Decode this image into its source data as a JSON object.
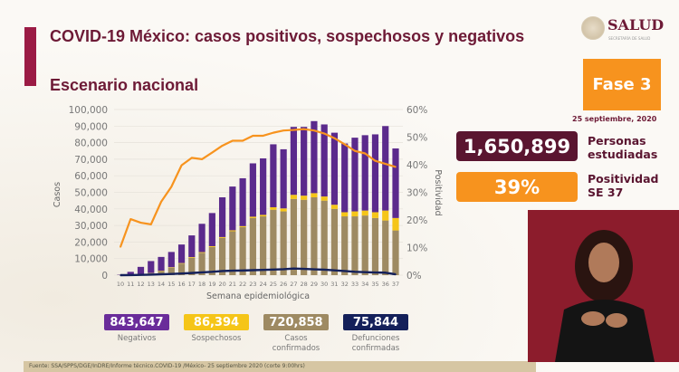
{
  "title": "COVID-19 México: casos positivos, sospechosos y negativos",
  "subtitle": "Escenario nacional",
  "logo": {
    "text": "SALUD",
    "subtext": "SECRETARÍA DE SALUD"
  },
  "fase": "Fase 3",
  "fecha": "25 septiembre, 2020",
  "kpis": [
    {
      "value": "1,650,899",
      "label1": "Personas",
      "label2": "estudiadas",
      "color": "#5a1530"
    },
    {
      "value": "39%",
      "label1": "Positividad",
      "label2": "SE 37",
      "color": "#f7931e"
    }
  ],
  "totals": [
    {
      "value": "843,647",
      "label1": "Negativos",
      "label2": "",
      "color": "#6a2c9a"
    },
    {
      "value": "86,394",
      "label1": "Sospechosos",
      "label2": "",
      "color": "#f5c518"
    },
    {
      "value": "720,858",
      "label1": "Casos",
      "label2": "confirmados",
      "color": "#9e8a62"
    },
    {
      "value": "75,844",
      "label1": "Defunciones",
      "label2": "confirmadas",
      "color": "#14205a"
    }
  ],
  "source": "Fuente: SSA/SPPS/DGE/InDRE/Informe técnico.COVID-19 /México- 25 septiembre 2020 (corte 9:00hrs)",
  "chart_data": {
    "type": "bar",
    "stacked": true,
    "xlabel": "Semana epidemiológica",
    "ylabel": "Casos",
    "y2label": "Positividad",
    "ylim": [
      0,
      100000
    ],
    "y2lim": [
      0,
      60
    ],
    "yticks": [
      "0",
      "10,000",
      "20,000",
      "30,000",
      "40,000",
      "50,000",
      "60,000",
      "70,000",
      "80,000",
      "90,000",
      "100,000"
    ],
    "y2ticks": [
      "0%",
      "10%",
      "20%",
      "30%",
      "40%",
      "50%",
      "60%"
    ],
    "grid": true,
    "categories": [
      "10",
      "11",
      "12",
      "13",
      "14",
      "15",
      "16",
      "17",
      "18",
      "19",
      "20",
      "21",
      "22",
      "23",
      "24",
      "25",
      "26",
      "27",
      "28",
      "29",
      "30",
      "31",
      "32",
      "33",
      "34",
      "35",
      "36",
      "37"
    ],
    "series": [
      {
        "key": "confirmados",
        "type": "bar",
        "color": "#9e8a62",
        "values": [
          100,
          300,
          700,
          1200,
          2500,
          4500,
          7000,
          10500,
          13500,
          17000,
          22500,
          26500,
          29000,
          34500,
          35500,
          39500,
          38500,
          46000,
          45500,
          47000,
          45000,
          40000,
          35500,
          35500,
          36000,
          34500,
          33000,
          27000
        ]
      },
      {
        "key": "sospechosos",
        "type": "bar",
        "color": "#f5c518",
        "values": [
          0,
          0,
          50,
          100,
          200,
          300,
          300,
          400,
          400,
          500,
          500,
          600,
          600,
          800,
          900,
          1500,
          1800,
          2500,
          2500,
          2500,
          2500,
          2500,
          2500,
          3000,
          3000,
          3500,
          6000,
          7500
        ]
      },
      {
        "key": "negativos",
        "type": "bar",
        "color": "#5b2a8c",
        "values": [
          200,
          1700,
          4250,
          7200,
          8300,
          9200,
          11200,
          13100,
          17100,
          20000,
          24000,
          26400,
          28900,
          32200,
          34100,
          38000,
          35700,
          41000,
          41500,
          43500,
          43500,
          43500,
          41500,
          44500,
          45500,
          47000,
          51000,
          42000
        ]
      },
      {
        "key": "defunciones",
        "type": "line",
        "color": "#14205a",
        "values": [
          0,
          50,
          150,
          300,
          500,
          700,
          1000,
          1300,
          1700,
          2000,
          2500,
          2700,
          2800,
          3000,
          3200,
          3400,
          3600,
          4000,
          3800,
          3500,
          3300,
          2900,
          2500,
          2000,
          1800,
          1600,
          1500,
          500
        ]
      },
      {
        "key": "positividad",
        "type": "line",
        "axis": "right",
        "color": "#f7931e",
        "values": [
          10.2,
          20.3,
          19,
          18.4,
          26.6,
          32,
          39.8,
          42.5,
          42,
          44.4,
          46.9,
          48.7,
          48.7,
          50.5,
          50.5,
          51.6,
          52.4,
          52.6,
          52.9,
          52.4,
          51.3,
          49.6,
          47.4,
          45,
          44.1,
          41.4,
          40.3,
          39.2
        ]
      }
    ]
  }
}
